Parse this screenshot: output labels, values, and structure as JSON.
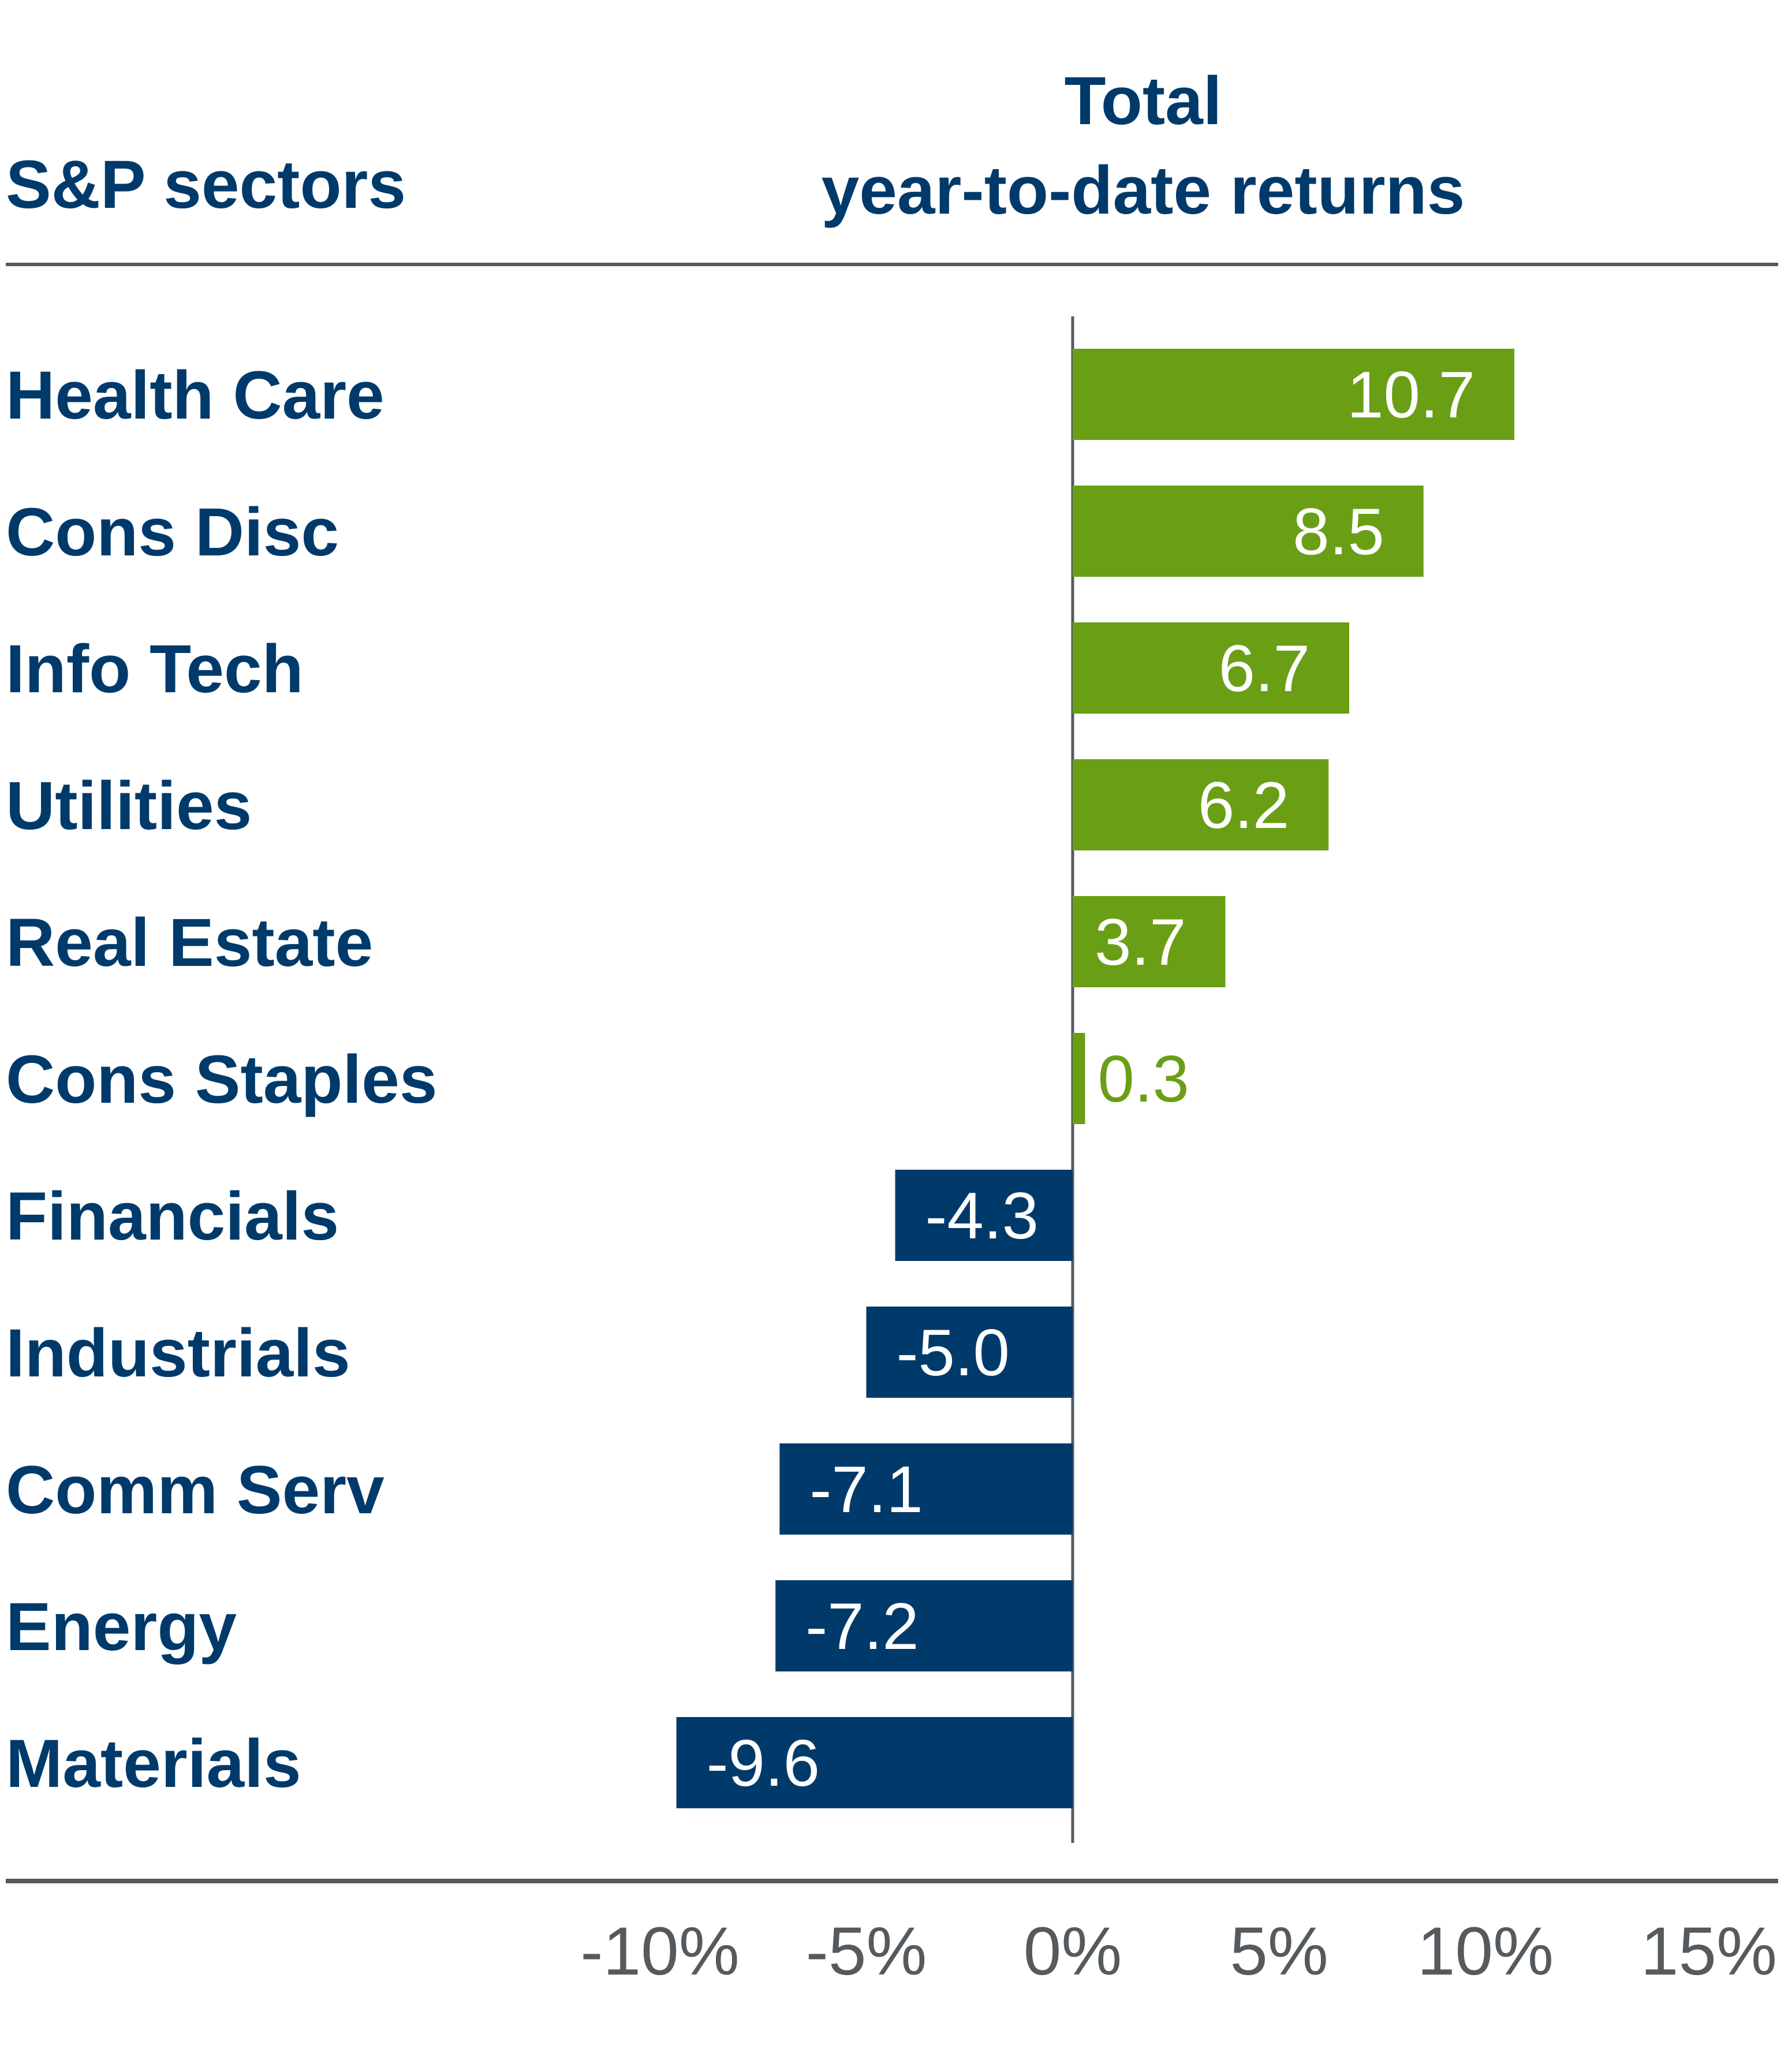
{
  "chart_data": {
    "type": "bar",
    "orientation": "horizontal",
    "header_left": "S&P sectors",
    "title_line1": "Total",
    "title_line2": "year-to-date returns",
    "categories": [
      "Health Care",
      "Cons Disc",
      "Info Tech",
      "Utilities",
      "Real Estate",
      "Cons Staples",
      "Financials",
      "Industrials",
      "Comm Serv",
      "Energy",
      "Materials"
    ],
    "values": [
      10.7,
      8.5,
      6.7,
      6.2,
      3.7,
      0.3,
      -4.3,
      -5.0,
      -7.1,
      -7.2,
      -9.6
    ],
    "value_labels": [
      "10.7",
      "8.5",
      "6.7",
      "6.2",
      "3.7",
      "0.3",
      "-4.3",
      "-5.0",
      "-7.1",
      "-7.2",
      "-9.6"
    ],
    "x_ticks": [
      -10,
      -5,
      0,
      5,
      10,
      15
    ],
    "x_tick_labels": [
      "-10%",
      "-5%",
      "0%",
      "5%",
      "10%",
      "15%"
    ],
    "xlim": [
      -10,
      15
    ],
    "positive_color": "#6a9f15",
    "negative_color": "#003a6b",
    "label_color": "#003a6b",
    "axis_color": "#555a5e"
  }
}
